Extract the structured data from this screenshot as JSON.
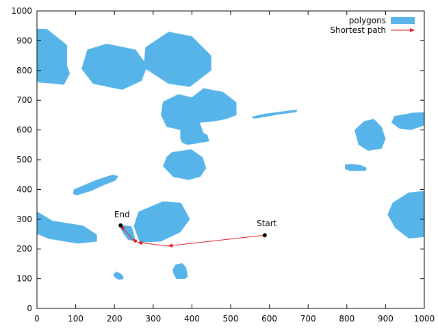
{
  "chart_data": {
    "type": "scatter",
    "title": "",
    "xlabel": "",
    "ylabel": "",
    "xlim": [
      0,
      1000
    ],
    "ylim": [
      0,
      1000
    ],
    "xticks": [
      0,
      100,
      200,
      300,
      400,
      500,
      600,
      700,
      800,
      900,
      1000
    ],
    "yticks": [
      0,
      100,
      200,
      300,
      400,
      500,
      600,
      700,
      800,
      900,
      1000
    ],
    "legend": {
      "placement": "top-right",
      "entries": [
        {
          "label": "polygons",
          "color": "#56b4e9",
          "style": "filled-polygon"
        },
        {
          "label": "Shortest path",
          "color": "#e41a1c",
          "style": "arrow-line"
        }
      ]
    },
    "polygons": [
      [
        [
          0,
          940
        ],
        [
          25,
          940
        ],
        [
          78,
          885
        ],
        [
          78,
          815
        ],
        [
          85,
          790
        ],
        [
          70,
          752
        ],
        [
          5,
          760
        ],
        [
          0,
          765
        ]
      ],
      [
        [
          130,
          870
        ],
        [
          180,
          890
        ],
        [
          255,
          870
        ],
        [
          285,
          815
        ],
        [
          270,
          765
        ],
        [
          220,
          735
        ],
        [
          145,
          755
        ],
        [
          115,
          805
        ]
      ],
      [
        [
          280,
          878
        ],
        [
          340,
          930
        ],
        [
          400,
          915
        ],
        [
          450,
          850
        ],
        [
          450,
          800
        ],
        [
          395,
          745
        ],
        [
          340,
          755
        ],
        [
          275,
          810
        ]
      ],
      [
        [
          325,
          695
        ],
        [
          365,
          720
        ],
        [
          400,
          710
        ],
        [
          430,
          740
        ],
        [
          480,
          728
        ],
        [
          515,
          693
        ],
        [
          515,
          650
        ],
        [
          490,
          637
        ],
        [
          455,
          628
        ],
        [
          420,
          625
        ],
        [
          430,
          590
        ],
        [
          440,
          583
        ],
        [
          445,
          562
        ],
        [
          415,
          555
        ],
        [
          388,
          550
        ],
        [
          375,
          557
        ],
        [
          370,
          570
        ],
        [
          370,
          600
        ],
        [
          335,
          610
        ],
        [
          320,
          650
        ]
      ],
      [
        [
          1,
          325
        ],
        [
          40,
          295
        ],
        [
          120,
          278
        ],
        [
          155,
          248
        ],
        [
          155,
          225
        ],
        [
          105,
          218
        ],
        [
          30,
          234
        ],
        [
          1,
          250
        ]
      ],
      [
        [
          262,
          325
        ],
        [
          325,
          360
        ],
        [
          372,
          355
        ],
        [
          395,
          300
        ],
        [
          370,
          256
        ],
        [
          320,
          225
        ],
        [
          265,
          222
        ],
        [
          250,
          277
        ]
      ],
      [
        [
          95,
          400
        ],
        [
          155,
          433
        ],
        [
          196,
          450
        ],
        [
          210,
          445
        ],
        [
          203,
          430
        ],
        [
          170,
          413
        ],
        [
          140,
          395
        ],
        [
          102,
          380
        ],
        [
          93,
          385
        ]
      ],
      [
        [
          213,
          282
        ],
        [
          244,
          276
        ],
        [
          250,
          252
        ],
        [
          255,
          225
        ],
        [
          235,
          231
        ],
        [
          225,
          248
        ],
        [
          216,
          268
        ]
      ],
      [
        [
          348,
          525
        ],
        [
          398,
          535
        ],
        [
          428,
          508
        ],
        [
          437,
          472
        ],
        [
          422,
          443
        ],
        [
          392,
          432
        ],
        [
          352,
          442
        ],
        [
          325,
          478
        ],
        [
          335,
          510
        ]
      ],
      [
        [
          555,
          645
        ],
        [
          590,
          655
        ],
        [
          650,
          665
        ],
        [
          672,
          668
        ],
        [
          670,
          660
        ],
        [
          625,
          652
        ],
        [
          580,
          642
        ],
        [
          558,
          638
        ]
      ],
      [
        [
          845,
          630
        ],
        [
          870,
          637
        ],
        [
          890,
          610
        ],
        [
          900,
          570
        ],
        [
          890,
          537
        ],
        [
          855,
          530
        ],
        [
          830,
          550
        ],
        [
          820,
          600
        ]
      ],
      [
        [
          923,
          647
        ],
        [
          972,
          658
        ],
        [
          1000,
          660
        ],
        [
          1000,
          615
        ],
        [
          965,
          600
        ],
        [
          935,
          605
        ],
        [
          915,
          625
        ]
      ],
      [
        [
          795,
          484
        ],
        [
          812,
          486
        ],
        [
          835,
          482
        ],
        [
          850,
          474
        ],
        [
          850,
          463
        ],
        [
          810,
          462
        ],
        [
          795,
          468
        ]
      ],
      [
        [
          918,
          355
        ],
        [
          960,
          390
        ],
        [
          1000,
          395
        ],
        [
          1000,
          240
        ],
        [
          960,
          235
        ],
        [
          925,
          270
        ],
        [
          905,
          315
        ]
      ],
      [
        [
          205,
          124
        ],
        [
          215,
          118
        ],
        [
          224,
          107
        ],
        [
          222,
          98
        ],
        [
          210,
          97
        ],
        [
          200,
          105
        ],
        [
          197,
          115
        ]
      ],
      [
        [
          358,
          148
        ],
        [
          375,
          152
        ],
        [
          385,
          138
        ],
        [
          390,
          108
        ],
        [
          382,
          99
        ],
        [
          360,
          99
        ],
        [
          353,
          115
        ],
        [
          350,
          130
        ]
      ]
    ],
    "path": {
      "start": {
        "label": "Start",
        "x": 588,
        "y": 246
      },
      "end": {
        "label": "End",
        "x": 216,
        "y": 279
      },
      "points": [
        [
          588,
          246
        ],
        [
          338,
          210
        ],
        [
          260,
          222
        ],
        [
          246,
          233
        ],
        [
          216,
          279
        ]
      ]
    },
    "colors": {
      "polygon_fill": "#56b4e9",
      "path": "#e41a1c",
      "axis": "#000000"
    }
  }
}
